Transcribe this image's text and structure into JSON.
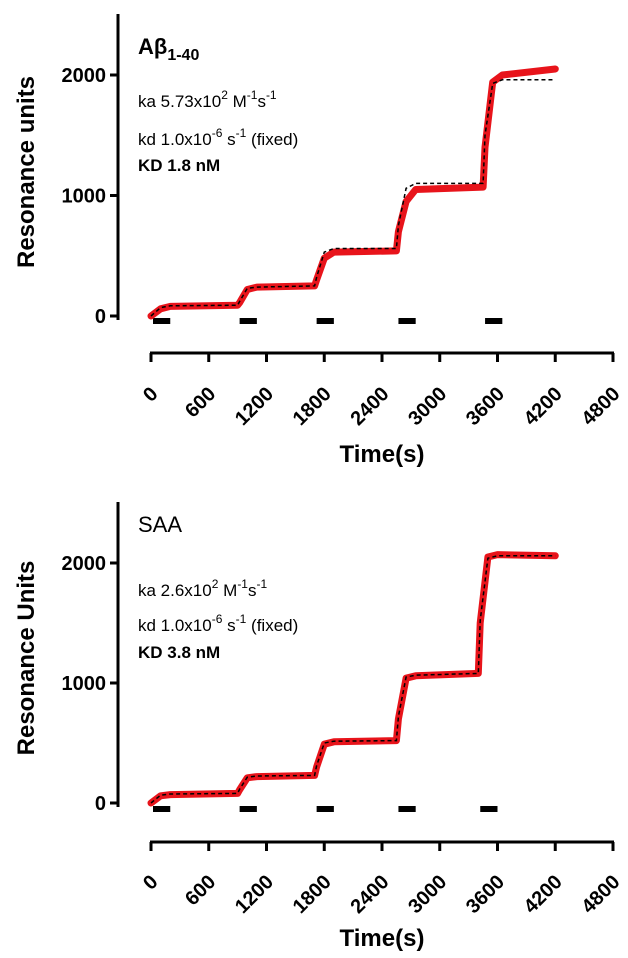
{
  "chart_data": [
    {
      "type": "line",
      "panel_label": "Aβ",
      "panel_label_sub": "1-40",
      "xlabel": "Time(s)",
      "ylabel": "Resonance units",
      "xlim": [
        0,
        4800
      ],
      "ylim": [
        0,
        2400
      ],
      "xticks": [
        0,
        600,
        1200,
        1800,
        2400,
        3000,
        3600,
        4200,
        4800
      ],
      "yticks": [
        0,
        1000,
        2000
      ],
      "grid": false,
      "annotations": [
        {
          "key": "ka",
          "value": "5.73x10",
          "sup": "2",
          "unit": " M",
          "unit_sup": "-1",
          "unit2": "s",
          "unit2_sup": "-1",
          "suffix": "",
          "bold": false
        },
        {
          "key": "kd",
          "value": "1.0x10",
          "sup": "-6",
          "unit": "  s",
          "unit_sup": "-1",
          "unit2": "",
          "unit2_sup": "",
          "suffix": " (fixed)",
          "bold": false
        },
        {
          "key": "KD",
          "value": "1.8 nM",
          "sup": "",
          "unit": "",
          "unit_sup": "",
          "unit2": "",
          "unit2_sup": "",
          "suffix": "",
          "bold": true
        }
      ],
      "injection_bars": [
        [
          0,
          200
        ],
        [
          900,
          1100
        ],
        [
          1700,
          1900
        ],
        [
          2550,
          2750
        ],
        [
          3450,
          3650
        ]
      ],
      "series": [
        {
          "style": "data",
          "color": "#e8141b",
          "x": [
            0,
            100,
            200,
            900,
            920,
            1000,
            1100,
            1700,
            1720,
            1800,
            1900,
            2550,
            2570,
            2650,
            2750,
            3450,
            3470,
            3550,
            3650,
            4200
          ],
          "y": [
            0,
            60,
            80,
            90,
            110,
            220,
            240,
            250,
            300,
            480,
            530,
            540,
            700,
            950,
            1050,
            1070,
            1400,
            1940,
            2000,
            2050
          ]
        },
        {
          "style": "fit",
          "color": "#000000",
          "x": [
            0,
            100,
            200,
            900,
            920,
            1000,
            1100,
            1700,
            1720,
            1800,
            1900,
            2550,
            2570,
            2650,
            2750,
            3450,
            3470,
            3550,
            3650,
            4200
          ],
          "y": [
            0,
            70,
            85,
            90,
            120,
            230,
            240,
            250,
            320,
            530,
            560,
            560,
            750,
            1060,
            1100,
            1100,
            1500,
            1930,
            1960,
            1960
          ]
        }
      ]
    },
    {
      "type": "line",
      "panel_label": "SAA",
      "panel_label_sub": "",
      "xlabel": "Time(s)",
      "ylabel": "Resonance Units",
      "xlim": [
        0,
        4800
      ],
      "ylim": [
        0,
        2400
      ],
      "xticks": [
        0,
        600,
        1200,
        1800,
        2400,
        3000,
        3600,
        4200,
        4800
      ],
      "yticks": [
        0,
        1000,
        2000
      ],
      "grid": false,
      "annotations": [
        {
          "key": "ka",
          "value": "2.6x10",
          "sup": "2",
          "unit": " M",
          "unit_sup": "-1",
          "unit2": "s",
          "unit2_sup": "-1",
          "suffix": "",
          "bold": false
        },
        {
          "key": "kd",
          "value": "1.0x10",
          "sup": "-6",
          "unit": "  s",
          "unit_sup": "-1",
          "unit2": "",
          "unit2_sup": "",
          "suffix": " (fixed)",
          "bold": false
        },
        {
          "key": "KD",
          "value": "3.8 nM",
          "sup": "",
          "unit": "",
          "unit_sup": "",
          "unit2": "",
          "unit2_sup": "",
          "suffix": "",
          "bold": true
        }
      ],
      "injection_bars": [
        [
          0,
          200
        ],
        [
          900,
          1100
        ],
        [
          1700,
          1900
        ],
        [
          2550,
          2750
        ],
        [
          3400,
          3600
        ]
      ],
      "series": [
        {
          "style": "data",
          "color": "#e8141b",
          "x": [
            0,
            100,
            200,
            900,
            920,
            1000,
            1100,
            1700,
            1720,
            1800,
            1900,
            2550,
            2570,
            2650,
            2750,
            3400,
            3420,
            3500,
            3600,
            4200
          ],
          "y": [
            0,
            60,
            70,
            80,
            110,
            210,
            220,
            230,
            300,
            490,
            510,
            520,
            700,
            1040,
            1060,
            1080,
            1500,
            2050,
            2070,
            2060
          ]
        },
        {
          "style": "fit",
          "color": "#000000",
          "x": [
            0,
            100,
            200,
            900,
            920,
            1000,
            1100,
            1700,
            1720,
            1800,
            1900,
            2550,
            2570,
            2650,
            2750,
            3400,
            3420,
            3500,
            3600,
            4200
          ],
          "y": [
            0,
            65,
            75,
            80,
            115,
            215,
            225,
            230,
            310,
            500,
            515,
            520,
            720,
            1050,
            1065,
            1080,
            1520,
            2040,
            2060,
            2060
          ]
        }
      ]
    }
  ]
}
